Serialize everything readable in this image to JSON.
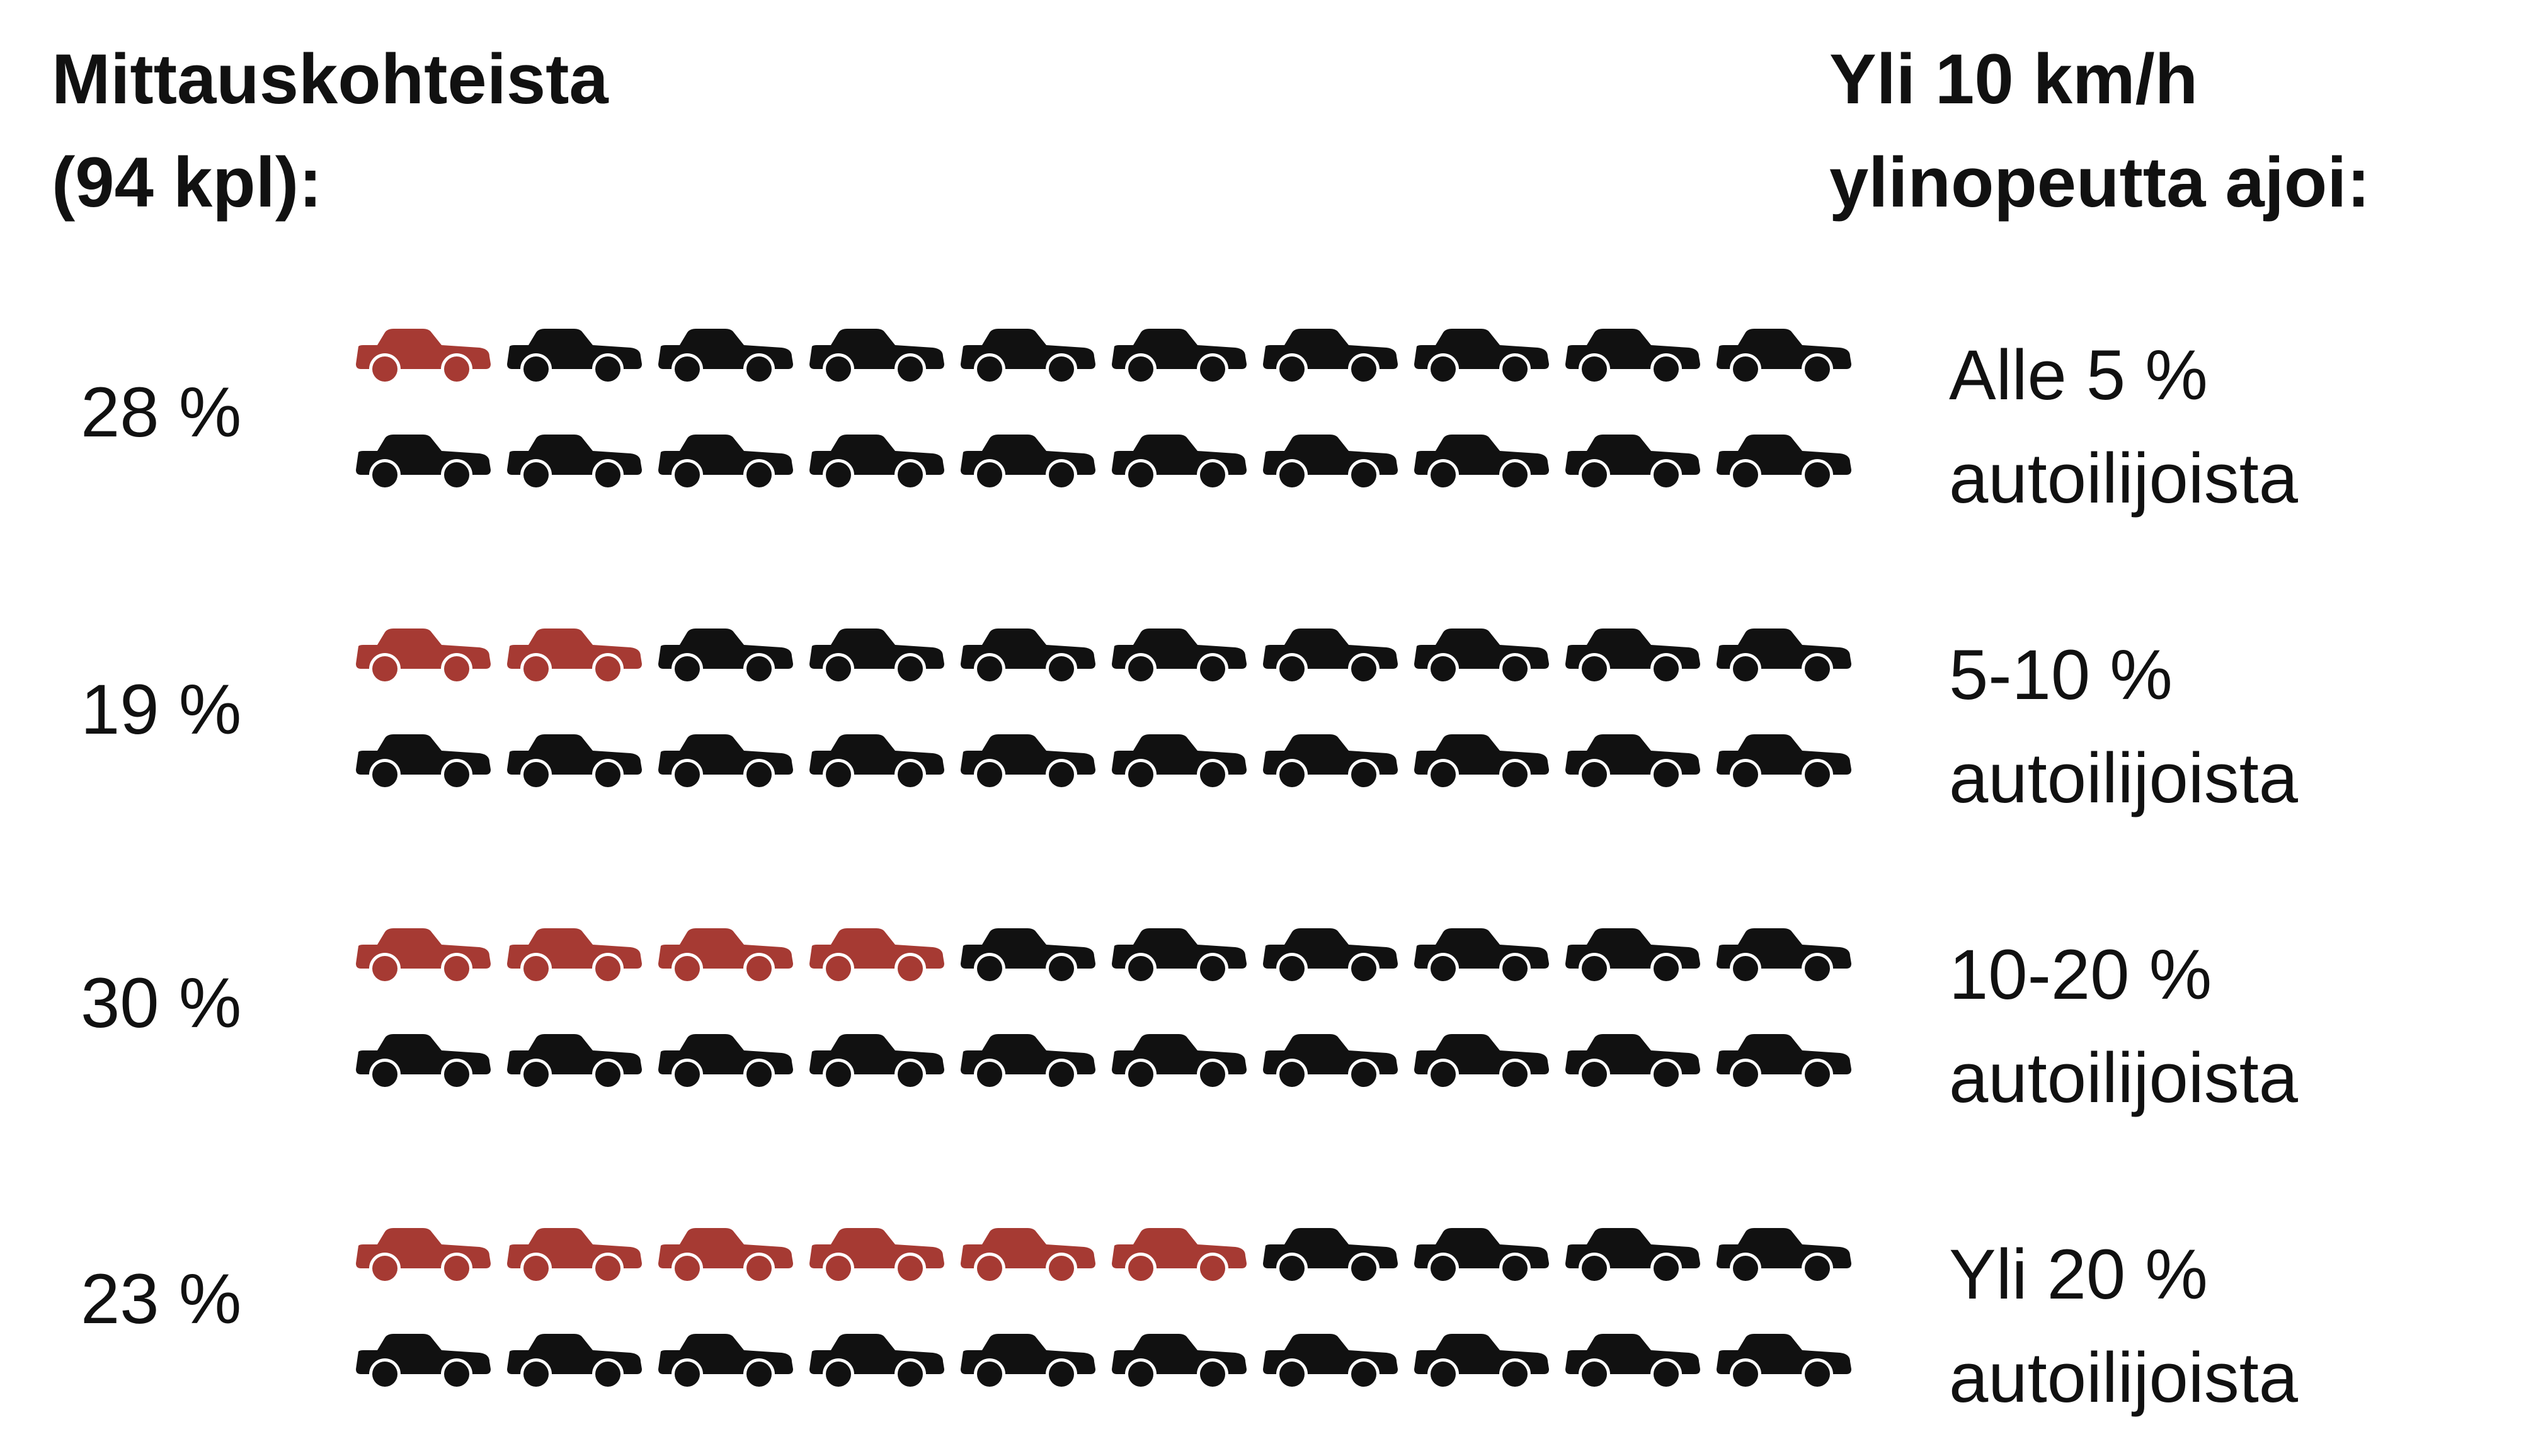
{
  "heading_left": "Mittauskohteista\n(94 kpl):",
  "heading_right": "Yli 10 km/h\nylinopeutta ajoi:",
  "colors": {
    "highlight": "#a63a33",
    "base": "#111111",
    "background": "#ffffff"
  },
  "icon": "car-icon",
  "chart_data": {
    "type": "pictogram",
    "title": "",
    "units_per_row": 20,
    "categories": [
      "Alle 5 %\nautoilijoista",
      "5-10 %\nautoilijoista",
      "10-20 %\nautoilijoista",
      "Yli 20 %\nautoilijoista"
    ],
    "values": [
      28,
      19,
      30,
      23
    ],
    "value_labels": [
      "28 %",
      "19 %",
      "30 %",
      "23 %"
    ],
    "highlighted_icons": [
      1,
      2,
      4,
      6
    ]
  }
}
